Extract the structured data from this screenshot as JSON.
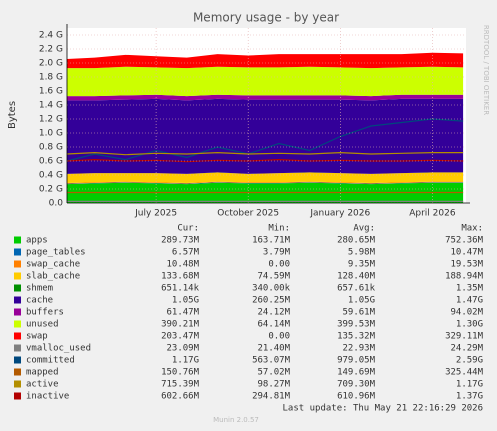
{
  "chart_data": {
    "type": "stacked-area",
    "title": "Memory usage - by year",
    "y_label": "Bytes",
    "side_label": "RRDTOOL / TOBI OETIKER",
    "categories": [
      null,
      null,
      null,
      "July 2025",
      null,
      null,
      "October 2025",
      null,
      null,
      "January 2026",
      null,
      null,
      "April 2026",
      null
    ],
    "ylim": [
      0,
      2.5
    ],
    "yticks": [
      {
        "value": 0,
        "label": "0.0"
      },
      {
        "value": 0.2,
        "label": "0.2 G"
      },
      {
        "value": 0.4,
        "label": "0.4 G"
      },
      {
        "value": 0.6,
        "label": "0.6 G"
      },
      {
        "value": 0.8,
        "label": "0.8 G"
      },
      {
        "value": 1.0,
        "label": "1.0 G"
      },
      {
        "value": 1.2,
        "label": "1.2 G"
      },
      {
        "value": 1.4,
        "label": "1.4 G"
      },
      {
        "value": 1.6,
        "label": "1.6 G"
      },
      {
        "value": 1.8,
        "label": "1.8 G"
      },
      {
        "value": 2.0,
        "label": "2.0 G"
      },
      {
        "value": 2.2,
        "label": "2.2 G"
      },
      {
        "value": 2.4,
        "label": "2.4 G"
      }
    ],
    "grid": true,
    "stat_headers": [
      "Cur:",
      "Min:",
      "Avg:",
      "Max:"
    ],
    "series": [
      {
        "name": "apps",
        "color": "#00cc00",
        "kind": "area",
        "values": [
          0.27,
          0.28,
          0.29,
          0.28,
          0.27,
          0.29,
          0.28,
          0.28,
          0.29,
          0.28,
          0.27,
          0.28,
          0.29,
          0.29
        ],
        "stats": [
          "289.73M",
          "163.71M",
          "280.65M",
          "752.36M"
        ]
      },
      {
        "name": "page_tables",
        "color": "#0066b3",
        "kind": "area",
        "values": [
          0.006,
          0.006,
          0.006,
          0.006,
          0.006,
          0.006,
          0.006,
          0.006,
          0.006,
          0.006,
          0.006,
          0.006,
          0.006,
          0.006
        ],
        "stats": [
          "6.57M",
          "3.79M",
          "5.98M",
          "10.47M"
        ]
      },
      {
        "name": "swap_cache",
        "color": "#ff8000",
        "kind": "area",
        "values": [
          0.01,
          0.01,
          0.01,
          0.01,
          0.01,
          0.01,
          0.01,
          0.01,
          0.01,
          0.01,
          0.01,
          0.01,
          0.01,
          0.01
        ],
        "stats": [
          "10.48M",
          "0.00",
          "9.35M",
          "19.53M"
        ]
      },
      {
        "name": "slab_cache",
        "color": "#ffcc00",
        "kind": "area",
        "values": [
          0.13,
          0.13,
          0.12,
          0.13,
          0.13,
          0.13,
          0.12,
          0.13,
          0.13,
          0.13,
          0.13,
          0.13,
          0.13,
          0.13
        ],
        "stats": [
          "133.68M",
          "74.59M",
          "128.40M",
          "188.94M"
        ]
      },
      {
        "name": "shmem",
        "color": "#008f00",
        "kind": "area",
        "values": [
          0.0007,
          0.0007,
          0.0007,
          0.0007,
          0.0007,
          0.0007,
          0.0007,
          0.0007,
          0.0007,
          0.0007,
          0.0007,
          0.0007,
          0.0007,
          0.0007
        ],
        "stats": [
          "651.14k",
          "340.00k",
          "657.61k",
          "1.35M"
        ]
      },
      {
        "name": "cache",
        "color": "#330099",
        "kind": "area",
        "values": [
          1.05,
          1.04,
          1.05,
          1.06,
          1.05,
          1.05,
          1.06,
          1.05,
          1.04,
          1.05,
          1.05,
          1.06,
          1.05,
          1.05
        ],
        "stats": [
          "1.05G",
          "260.25M",
          "1.05G",
          "1.47G"
        ]
      },
      {
        "name": "buffers",
        "color": "#990099",
        "kind": "area",
        "values": [
          0.06,
          0.06,
          0.06,
          0.06,
          0.06,
          0.06,
          0.06,
          0.06,
          0.06,
          0.06,
          0.06,
          0.06,
          0.06,
          0.06
        ],
        "stats": [
          "61.47M",
          "24.12M",
          "59.61M",
          "94.02M"
        ]
      },
      {
        "name": "unused",
        "color": "#ccff00",
        "kind": "area",
        "values": [
          0.4,
          0.4,
          0.41,
          0.39,
          0.4,
          0.4,
          0.4,
          0.4,
          0.41,
          0.4,
          0.4,
          0.39,
          0.4,
          0.39
        ],
        "stats": [
          "390.21M",
          "64.14M",
          "399.53M",
          "1.30G"
        ]
      },
      {
        "name": "swap",
        "color": "#ff0000",
        "kind": "area",
        "values": [
          0.13,
          0.15,
          0.17,
          0.16,
          0.15,
          0.18,
          0.17,
          0.19,
          0.18,
          0.19,
          0.2,
          0.19,
          0.2,
          0.2
        ],
        "stats": [
          "203.47M",
          "0.00",
          "135.32M",
          "329.11M"
        ]
      },
      {
        "name": "vmalloc_used",
        "color": "#808080",
        "kind": "line",
        "values": [
          0.023,
          0.023,
          0.023,
          0.023,
          0.023,
          0.023,
          0.023,
          0.023,
          0.023,
          0.023,
          0.023,
          0.023,
          0.023,
          0.023
        ],
        "stats": [
          "23.09M",
          "21.40M",
          "22.93M",
          "24.29M"
        ]
      },
      {
        "name": "committed",
        "color": "#00487d",
        "kind": "line",
        "values": [
          0.6,
          0.7,
          0.62,
          0.75,
          0.65,
          0.8,
          0.7,
          0.85,
          0.75,
          0.95,
          1.1,
          1.15,
          1.2,
          1.17
        ],
        "stats": [
          "1.17G",
          "563.07M",
          "979.05M",
          "2.59G"
        ]
      },
      {
        "name": "mapped",
        "color": "#b35a00",
        "kind": "line",
        "values": [
          0.15,
          0.15,
          0.15,
          0.15,
          0.15,
          0.15,
          0.15,
          0.15,
          0.15,
          0.15,
          0.15,
          0.15,
          0.15,
          0.15
        ],
        "stats": [
          "150.76M",
          "57.02M",
          "149.69M",
          "325.44M"
        ]
      },
      {
        "name": "active",
        "color": "#b38f00",
        "kind": "line",
        "values": [
          0.7,
          0.72,
          0.69,
          0.71,
          0.7,
          0.72,
          0.7,
          0.71,
          0.7,
          0.72,
          0.7,
          0.71,
          0.72,
          0.72
        ],
        "stats": [
          "715.39M",
          "98.27M",
          "709.30M",
          "1.17G"
        ]
      },
      {
        "name": "inactive",
        "color": "#b30000",
        "kind": "line",
        "values": [
          0.6,
          0.62,
          0.6,
          0.61,
          0.59,
          0.61,
          0.6,
          0.62,
          0.6,
          0.61,
          0.6,
          0.6,
          0.61,
          0.6
        ],
        "stats": [
          "602.66M",
          "294.81M",
          "610.96M",
          "1.37G"
        ]
      }
    ],
    "last_update": "Last update: Thu May 21 22:16:29 2026",
    "footer": "Munin 2.0.57"
  }
}
